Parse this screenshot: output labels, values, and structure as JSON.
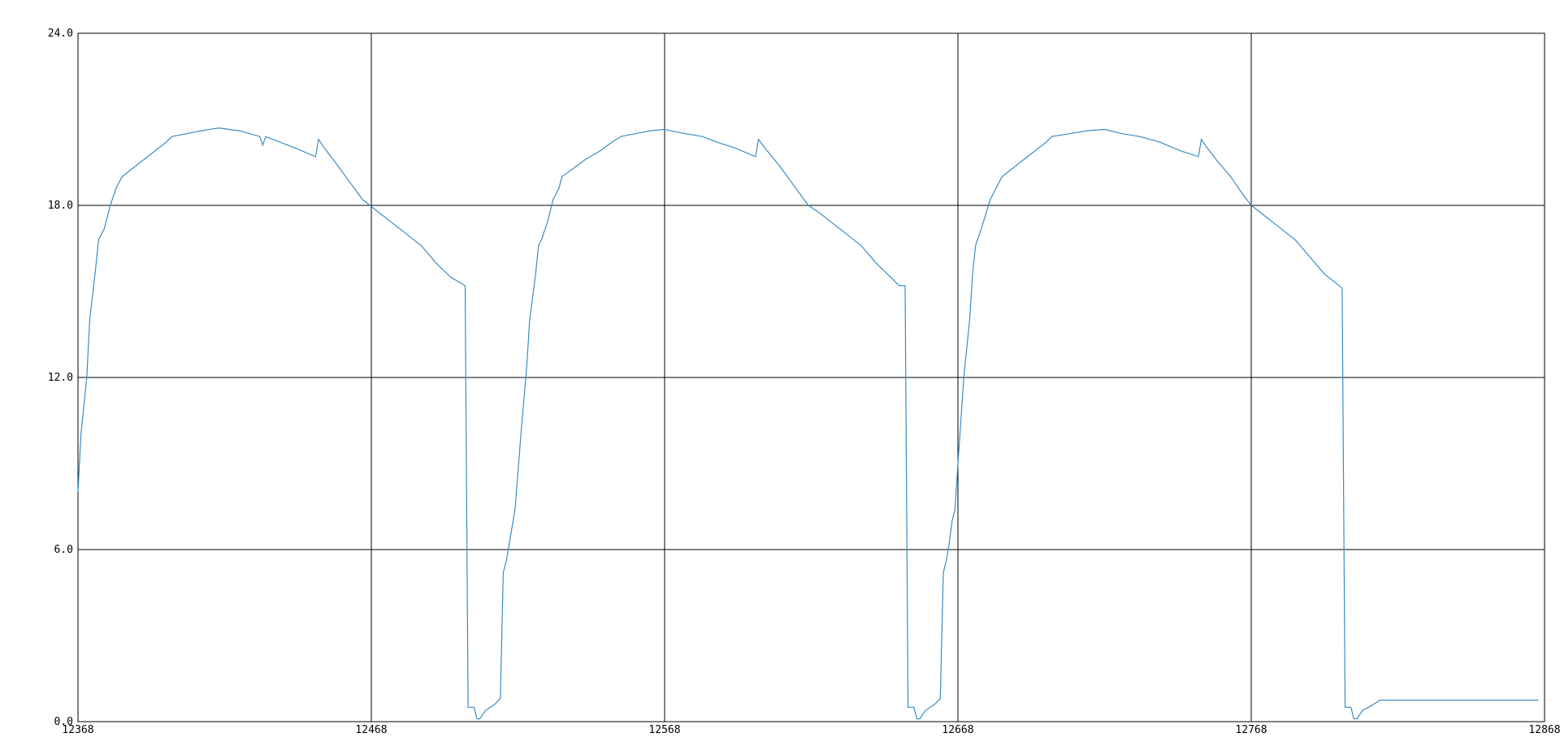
{
  "chart_data": {
    "type": "line",
    "title": "",
    "xlabel": "",
    "ylabel": "",
    "xlim": [
      12368,
      12868
    ],
    "ylim": [
      0.0,
      24.0
    ],
    "grid": true,
    "x_ticks": [
      "12368",
      "12468",
      "12568",
      "12668",
      "12768",
      "12868"
    ],
    "y_ticks": [
      "0.0",
      "6.0",
      "12.0",
      "18.0",
      "24.0"
    ],
    "series": [
      {
        "color": "#3a8dc4",
        "points": [
          [
            12368,
            8.0
          ],
          [
            12369,
            10.0
          ],
          [
            12371,
            12.0
          ],
          [
            12372,
            14.0
          ],
          [
            12374,
            15.8
          ],
          [
            12375,
            16.8
          ],
          [
            12377,
            17.2
          ],
          [
            12379,
            18.0
          ],
          [
            12381,
            18.6
          ],
          [
            12383,
            19.0
          ],
          [
            12388,
            19.4
          ],
          [
            12393,
            19.8
          ],
          [
            12398,
            20.2
          ],
          [
            12400,
            20.4
          ],
          [
            12405,
            20.5
          ],
          [
            12410,
            20.6
          ],
          [
            12416,
            20.7
          ],
          [
            12423,
            20.6
          ],
          [
            12430,
            20.4
          ],
          [
            12431,
            20.1
          ],
          [
            12432,
            20.4
          ],
          [
            12437,
            20.2
          ],
          [
            12442,
            20.0
          ],
          [
            12449,
            19.7
          ],
          [
            12450,
            20.3
          ],
          [
            12452,
            20.0
          ],
          [
            12455,
            19.6
          ],
          [
            12460,
            18.9
          ],
          [
            12465,
            18.2
          ],
          [
            12470,
            17.8
          ],
          [
            12475,
            17.4
          ],
          [
            12480,
            17.0
          ],
          [
            12485,
            16.6
          ],
          [
            12490,
            16.0
          ],
          [
            12495,
            15.5
          ],
          [
            12500,
            15.2
          ],
          [
            12501,
            0.5
          ],
          [
            12503,
            0.5
          ],
          [
            12504,
            0.1
          ],
          [
            12505,
            0.1
          ],
          [
            12507,
            0.4
          ],
          [
            12510,
            0.6
          ],
          [
            12512,
            0.8
          ],
          [
            12513,
            5.2
          ],
          [
            12514,
            5.6
          ],
          [
            12515,
            6.2
          ],
          [
            12517,
            7.4
          ],
          [
            12519,
            10.0
          ],
          [
            12521,
            12.4
          ],
          [
            12522,
            14.0
          ],
          [
            12524,
            15.6
          ],
          [
            12525,
            16.6
          ],
          [
            12526,
            16.8
          ],
          [
            12528,
            17.4
          ],
          [
            12530,
            18.2
          ],
          [
            12532,
            18.6
          ],
          [
            12533,
            19.0
          ],
          [
            12537,
            19.3
          ],
          [
            12541,
            19.6
          ],
          [
            12546,
            19.9
          ],
          [
            12550,
            20.2
          ],
          [
            12553,
            20.4
          ],
          [
            12558,
            20.5
          ],
          [
            12563,
            20.6
          ],
          [
            12568,
            20.65
          ],
          [
            12570,
            20.6
          ],
          [
            12575,
            20.5
          ],
          [
            12581,
            20.4
          ],
          [
            12586,
            20.2
          ],
          [
            12592,
            20.0
          ],
          [
            12599,
            19.7
          ],
          [
            12600,
            20.3
          ],
          [
            12603,
            19.9
          ],
          [
            12607,
            19.4
          ],
          [
            12612,
            18.7
          ],
          [
            12617,
            18.0
          ],
          [
            12620,
            17.8
          ],
          [
            12625,
            17.4
          ],
          [
            12630,
            17.0
          ],
          [
            12635,
            16.6
          ],
          [
            12640,
            16.0
          ],
          [
            12645,
            15.5
          ],
          [
            12648,
            15.2
          ],
          [
            12650,
            15.2
          ],
          [
            12651,
            0.5
          ],
          [
            12653,
            0.5
          ],
          [
            12654,
            0.1
          ],
          [
            12655,
            0.1
          ],
          [
            12657,
            0.4
          ],
          [
            12660,
            0.6
          ],
          [
            12662,
            0.8
          ],
          [
            12663,
            5.2
          ],
          [
            12664,
            5.6
          ],
          [
            12665,
            6.2
          ],
          [
            12666,
            7.0
          ],
          [
            12667,
            7.4
          ],
          [
            12668,
            9.0
          ],
          [
            12670,
            12.0
          ],
          [
            12672,
            14.0
          ],
          [
            12673,
            15.6
          ],
          [
            12674,
            16.6
          ],
          [
            12676,
            17.2
          ],
          [
            12679,
            18.2
          ],
          [
            12683,
            19.0
          ],
          [
            12688,
            19.4
          ],
          [
            12693,
            19.8
          ],
          [
            12698,
            20.2
          ],
          [
            12700,
            20.4
          ],
          [
            12706,
            20.5
          ],
          [
            12712,
            20.6
          ],
          [
            12718,
            20.65
          ],
          [
            12724,
            20.5
          ],
          [
            12730,
            20.4
          ],
          [
            12737,
            20.2
          ],
          [
            12744,
            19.9
          ],
          [
            12750,
            19.7
          ],
          [
            12751,
            20.3
          ],
          [
            12753,
            20.0
          ],
          [
            12756,
            19.6
          ],
          [
            12761,
            19.0
          ],
          [
            12765,
            18.4
          ],
          [
            12768,
            18.0
          ],
          [
            12773,
            17.6
          ],
          [
            12778,
            17.2
          ],
          [
            12783,
            16.8
          ],
          [
            12788,
            16.2
          ],
          [
            12793,
            15.6
          ],
          [
            12798,
            15.2
          ],
          [
            12799,
            15.1
          ],
          [
            12800,
            0.5
          ],
          [
            12802,
            0.5
          ],
          [
            12803,
            0.1
          ],
          [
            12804,
            0.1
          ],
          [
            12806,
            0.4
          ],
          [
            12808,
            0.5
          ],
          [
            12812,
            0.75
          ],
          [
            12820,
            0.75
          ],
          [
            12840,
            0.75
          ],
          [
            12866,
            0.75
          ]
        ]
      }
    ]
  }
}
